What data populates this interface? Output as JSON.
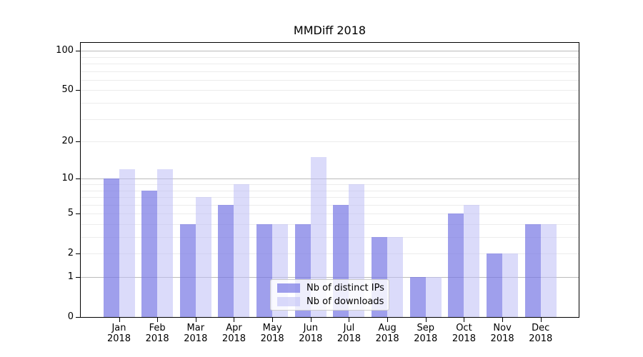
{
  "chart_data": {
    "type": "bar",
    "title": "MMDiff 2018",
    "categories": [
      "Jan 2018",
      "Feb 2018",
      "Mar 2018",
      "Apr 2018",
      "May 2018",
      "Jun 2018",
      "Jul 2018",
      "Aug 2018",
      "Sep 2018",
      "Oct 2018",
      "Nov 2018",
      "Dec 2018"
    ],
    "x_tick_months": [
      "Jan",
      "Feb",
      "Mar",
      "Apr",
      "May",
      "Jun",
      "Jul",
      "Aug",
      "Sep",
      "Oct",
      "Nov",
      "Dec"
    ],
    "x_tick_year": "2018",
    "series": [
      {
        "name": "Nb of distinct IPs",
        "color": "#9f9fec",
        "values": [
          10,
          8,
          4,
          6,
          4,
          4,
          6,
          3,
          1,
          5,
          2,
          4
        ]
      },
      {
        "name": "Nb of downloads",
        "color": "#dbdbfa",
        "values": [
          12,
          12,
          7,
          9,
          4,
          15,
          9,
          3,
          1,
          6,
          2,
          4
        ]
      }
    ],
    "yscale": "log1p",
    "ylim": [
      0,
      117
    ],
    "y_ticks": [
      {
        "label": "100",
        "value": 100
      },
      {
        "label": "50",
        "value": 50
      },
      {
        "label": "20",
        "value": 20
      },
      {
        "label": "10",
        "value": 10
      },
      {
        "label": "5",
        "value": 5
      },
      {
        "label": "2",
        "value": 2
      },
      {
        "label": "1",
        "value": 1
      },
      {
        "label": "0",
        "value": 0
      }
    ],
    "gridlines": {
      "major": [
        1,
        10,
        100
      ],
      "minor": [
        2,
        3,
        4,
        5,
        6,
        7,
        8,
        9,
        20,
        30,
        40,
        50,
        60,
        70,
        80,
        90
      ]
    },
    "legend": {
      "entries": [
        "Nb of distinct IPs",
        "Nb of downloads"
      ],
      "position": "lower center"
    },
    "grid": true,
    "xlabel": "",
    "ylabel": ""
  },
  "colors": {
    "background": "#ffffff",
    "axis": "#000000",
    "grid_major": "#bbbbbb",
    "grid_minor": "#ececec",
    "legend_border": "#cccccc",
    "series_distinct_ips": "#9f9fec",
    "series_downloads": "#dbdbfa"
  }
}
